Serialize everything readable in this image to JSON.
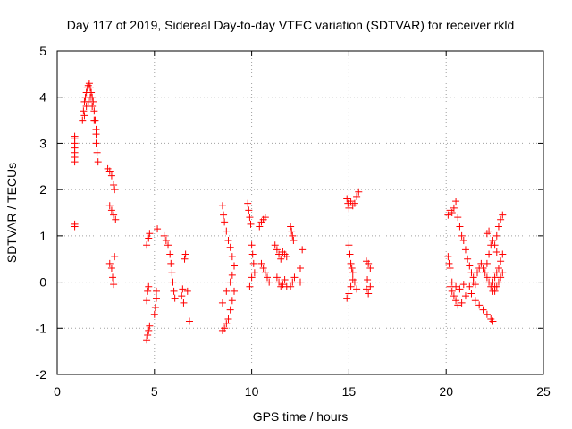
{
  "chart_data": {
    "type": "scatter",
    "title": "Day 117 of 2019, Sidereal Day-to-day VTEC variation (SDTVAR) for receiver rkld",
    "xlabel": "GPS time / hours",
    "ylabel": "SDTVAR / TECUs",
    "xlim": [
      0,
      25
    ],
    "ylim": [
      -2,
      5
    ],
    "xticks": [
      0,
      5,
      10,
      15,
      20,
      25
    ],
    "xtick_labels": [
      "0",
      "5",
      "10",
      "15",
      "20",
      "25"
    ],
    "yticks": [
      -2,
      -1,
      0,
      1,
      2,
      3,
      4,
      5
    ],
    "ytick_labels": [
      "-2",
      "-1",
      "0",
      "1",
      "2",
      "3",
      "4",
      "5"
    ],
    "grid": true,
    "marker": "+",
    "color": "#ff0000",
    "series": [
      {
        "name": "SDTVAR",
        "points": [
          [
            0.9,
            1.2
          ],
          [
            0.9,
            1.25
          ],
          [
            0.9,
            2.6
          ],
          [
            0.9,
            2.7
          ],
          [
            0.9,
            2.8
          ],
          [
            0.9,
            2.9
          ],
          [
            0.9,
            3.0
          ],
          [
            0.9,
            3.1
          ],
          [
            0.9,
            3.15
          ],
          [
            1.3,
            3.5
          ],
          [
            1.35,
            3.7
          ],
          [
            1.4,
            3.9
          ],
          [
            1.45,
            4.0
          ],
          [
            1.5,
            4.1
          ],
          [
            1.55,
            4.2
          ],
          [
            1.6,
            4.25
          ],
          [
            1.65,
            4.3
          ],
          [
            1.7,
            4.2
          ],
          [
            1.75,
            4.1
          ],
          [
            1.8,
            4.0
          ],
          [
            1.85,
            3.9
          ],
          [
            1.9,
            3.7
          ],
          [
            1.95,
            3.5
          ],
          [
            2.0,
            3.3
          ],
          [
            2.0,
            3.0
          ],
          [
            2.05,
            2.8
          ],
          [
            2.1,
            2.6
          ],
          [
            1.4,
            3.6
          ],
          [
            1.5,
            3.8
          ],
          [
            1.6,
            3.9
          ],
          [
            1.7,
            4.0
          ],
          [
            1.8,
            3.8
          ],
          [
            1.9,
            3.5
          ],
          [
            2.0,
            3.2
          ],
          [
            2.6,
            2.45
          ],
          [
            2.7,
            2.4
          ],
          [
            2.8,
            2.3
          ],
          [
            2.9,
            2.1
          ],
          [
            2.95,
            2.0
          ],
          [
            2.7,
            1.65
          ],
          [
            2.8,
            1.55
          ],
          [
            2.9,
            1.45
          ],
          [
            3.0,
            1.35
          ],
          [
            2.7,
            0.4
          ],
          [
            2.8,
            0.3
          ],
          [
            2.85,
            0.1
          ],
          [
            2.9,
            -0.05
          ],
          [
            2.95,
            0.55
          ],
          [
            4.6,
            -1.25
          ],
          [
            4.65,
            -1.15
          ],
          [
            4.7,
            -1.05
          ],
          [
            4.75,
            -0.95
          ],
          [
            4.6,
            -0.4
          ],
          [
            4.65,
            -0.2
          ],
          [
            4.7,
            -0.1
          ],
          [
            4.6,
            0.8
          ],
          [
            4.7,
            0.95
          ],
          [
            4.75,
            1.05
          ],
          [
            5.0,
            -0.7
          ],
          [
            5.05,
            -0.55
          ],
          [
            5.1,
            -0.35
          ],
          [
            5.1,
            -0.2
          ],
          [
            5.15,
            1.15
          ],
          [
            5.5,
            1.0
          ],
          [
            5.6,
            0.9
          ],
          [
            5.7,
            0.8
          ],
          [
            5.8,
            0.6
          ],
          [
            5.85,
            0.4
          ],
          [
            5.9,
            0.2
          ],
          [
            5.95,
            0.0
          ],
          [
            6.0,
            -0.2
          ],
          [
            6.05,
            -0.35
          ],
          [
            6.4,
            -0.3
          ],
          [
            6.45,
            -0.15
          ],
          [
            6.5,
            -0.45
          ],
          [
            6.55,
            0.5
          ],
          [
            6.6,
            0.6
          ],
          [
            6.8,
            -0.85
          ],
          [
            6.7,
            -0.2
          ],
          [
            8.5,
            1.65
          ],
          [
            8.55,
            1.45
          ],
          [
            8.6,
            1.3
          ],
          [
            8.7,
            1.1
          ],
          [
            8.8,
            0.9
          ],
          [
            8.9,
            0.75
          ],
          [
            9.0,
            0.55
          ],
          [
            9.1,
            0.35
          ],
          [
            8.5,
            -1.05
          ],
          [
            8.6,
            -1.0
          ],
          [
            8.7,
            -0.9
          ],
          [
            8.8,
            -0.8
          ],
          [
            8.9,
            -0.6
          ],
          [
            9.0,
            -0.4
          ],
          [
            9.1,
            -0.2
          ],
          [
            8.5,
            -0.45
          ],
          [
            8.7,
            -0.2
          ],
          [
            8.9,
            0.0
          ],
          [
            9.0,
            0.15
          ],
          [
            9.8,
            1.7
          ],
          [
            9.85,
            1.55
          ],
          [
            9.9,
            1.4
          ],
          [
            9.95,
            1.25
          ],
          [
            10.0,
            0.8
          ],
          [
            10.05,
            0.6
          ],
          [
            10.1,
            0.4
          ],
          [
            10.15,
            0.2
          ],
          [
            9.9,
            -0.1
          ],
          [
            10.0,
            0.1
          ],
          [
            10.4,
            1.2
          ],
          [
            10.5,
            1.3
          ],
          [
            10.6,
            1.35
          ],
          [
            10.7,
            1.4
          ],
          [
            10.5,
            0.4
          ],
          [
            10.6,
            0.3
          ],
          [
            10.7,
            0.2
          ],
          [
            10.8,
            0.1
          ],
          [
            10.9,
            0.0
          ],
          [
            11.2,
            0.8
          ],
          [
            11.3,
            0.7
          ],
          [
            11.4,
            0.6
          ],
          [
            11.5,
            0.5
          ],
          [
            11.6,
            0.65
          ],
          [
            11.7,
            0.6
          ],
          [
            11.8,
            0.55
          ],
          [
            11.3,
            0.1
          ],
          [
            11.4,
            0.0
          ],
          [
            11.5,
            -0.1
          ],
          [
            11.6,
            -0.05
          ],
          [
            11.7,
            0.05
          ],
          [
            11.8,
            -0.1
          ],
          [
            12.0,
            1.2
          ],
          [
            12.05,
            1.1
          ],
          [
            12.1,
            1.0
          ],
          [
            12.15,
            0.9
          ],
          [
            12.0,
            -0.1
          ],
          [
            12.1,
            0.0
          ],
          [
            12.2,
            0.1
          ],
          [
            12.6,
            0.7
          ],
          [
            12.5,
            0.3
          ],
          [
            12.5,
            0.0
          ],
          [
            14.9,
            1.8
          ],
          [
            14.95,
            1.7
          ],
          [
            15.0,
            1.6
          ],
          [
            15.1,
            1.75
          ],
          [
            15.2,
            1.65
          ],
          [
            15.3,
            1.7
          ],
          [
            15.4,
            1.85
          ],
          [
            15.5,
            1.95
          ],
          [
            15.0,
            0.8
          ],
          [
            15.05,
            0.6
          ],
          [
            15.1,
            0.4
          ],
          [
            15.15,
            0.3
          ],
          [
            15.2,
            0.2
          ],
          [
            15.3,
            0.0
          ],
          [
            15.4,
            -0.15
          ],
          [
            14.9,
            -0.35
          ],
          [
            15.0,
            -0.25
          ],
          [
            15.1,
            -0.1
          ],
          [
            15.2,
            0.05
          ],
          [
            15.9,
            0.45
          ],
          [
            16.0,
            0.4
          ],
          [
            16.1,
            0.3
          ],
          [
            15.9,
            -0.15
          ],
          [
            16.0,
            -0.25
          ],
          [
            16.1,
            -0.1
          ],
          [
            15.95,
            0.05
          ],
          [
            20.1,
            0.55
          ],
          [
            20.15,
            0.4
          ],
          [
            20.2,
            0.3
          ],
          [
            20.1,
            1.45
          ],
          [
            20.2,
            1.55
          ],
          [
            20.3,
            1.5
          ],
          [
            20.4,
            1.6
          ],
          [
            20.5,
            1.75
          ],
          [
            20.6,
            1.4
          ],
          [
            20.7,
            1.2
          ],
          [
            20.8,
            1.0
          ],
          [
            20.9,
            0.9
          ],
          [
            21.0,
            0.7
          ],
          [
            21.1,
            0.5
          ],
          [
            21.2,
            0.35
          ],
          [
            21.3,
            0.2
          ],
          [
            21.4,
            0.1
          ],
          [
            21.5,
            -0.05
          ],
          [
            20.2,
            -0.1
          ],
          [
            20.3,
            -0.2
          ],
          [
            20.4,
            -0.3
          ],
          [
            20.5,
            -0.4
          ],
          [
            20.6,
            -0.5
          ],
          [
            20.8,
            -0.45
          ],
          [
            21.0,
            -0.3
          ],
          [
            21.2,
            -0.1
          ],
          [
            21.4,
            0.0
          ],
          [
            20.3,
            0.0
          ],
          [
            20.5,
            -0.1
          ],
          [
            20.7,
            -0.15
          ],
          [
            20.9,
            -0.05
          ],
          [
            21.3,
            -0.25
          ],
          [
            21.5,
            -0.4
          ],
          [
            21.7,
            -0.5
          ],
          [
            21.9,
            -0.6
          ],
          [
            22.1,
            -0.7
          ],
          [
            22.3,
            -0.8
          ],
          [
            22.4,
            -0.85
          ],
          [
            21.6,
            0.2
          ],
          [
            21.7,
            0.3
          ],
          [
            21.8,
            0.4
          ],
          [
            21.9,
            0.3
          ],
          [
            22.0,
            0.2
          ],
          [
            22.1,
            0.1
          ],
          [
            22.2,
            0.0
          ],
          [
            22.3,
            -0.1
          ],
          [
            22.4,
            -0.2
          ],
          [
            22.5,
            -0.1
          ],
          [
            22.1,
            0.4
          ],
          [
            22.2,
            0.6
          ],
          [
            22.3,
            0.8
          ],
          [
            22.4,
            0.9
          ],
          [
            22.5,
            0.8
          ],
          [
            22.6,
            0.65
          ],
          [
            22.1,
            1.05
          ],
          [
            22.2,
            1.1
          ],
          [
            22.4,
            0.0
          ],
          [
            22.5,
            0.1
          ],
          [
            22.6,
            0.2
          ],
          [
            22.7,
            0.3
          ],
          [
            22.8,
            0.45
          ],
          [
            22.9,
            0.6
          ],
          [
            22.6,
            1.0
          ],
          [
            22.7,
            1.2
          ],
          [
            22.8,
            1.35
          ],
          [
            22.9,
            1.45
          ],
          [
            22.5,
            -0.2
          ],
          [
            22.6,
            -0.1
          ],
          [
            22.7,
            0.0
          ],
          [
            22.8,
            0.1
          ],
          [
            22.9,
            0.2
          ]
        ]
      }
    ]
  }
}
